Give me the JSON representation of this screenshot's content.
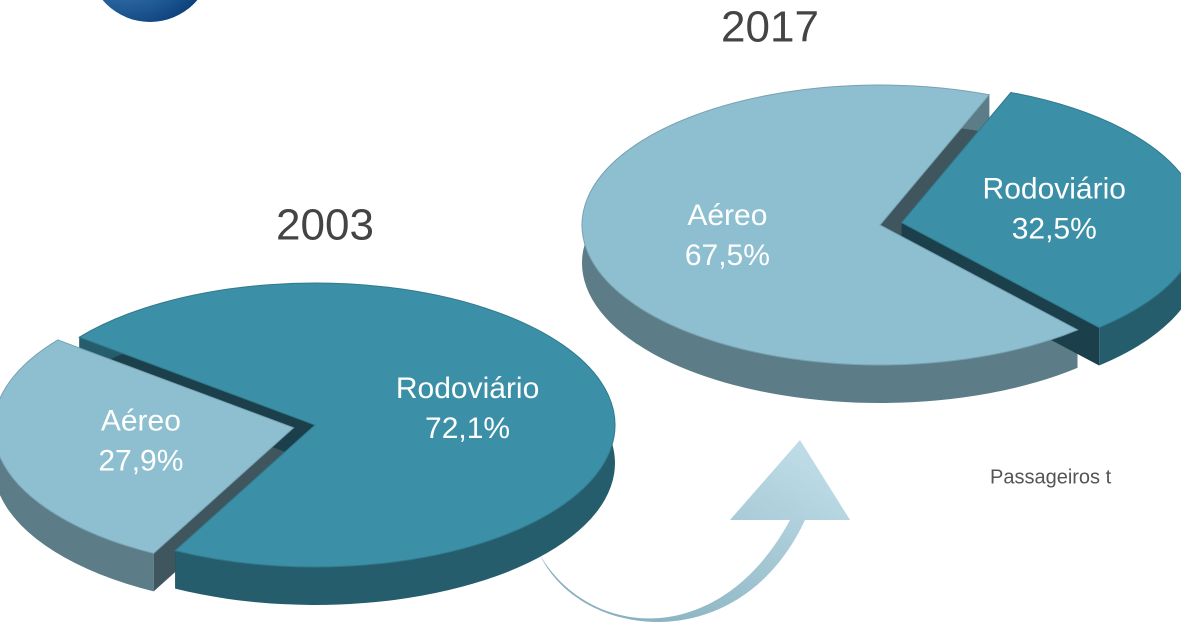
{
  "chart_data": [
    {
      "type": "pie",
      "title": "2003",
      "categories": [
        "Aéreo",
        "Rodoviário"
      ],
      "values": [
        27.9,
        72.1
      ],
      "value_labels": [
        "27,9%",
        "72,1%"
      ],
      "colors": [
        "#8dbfd0",
        "#3b8fa6"
      ]
    },
    {
      "type": "pie",
      "title": "2017",
      "categories": [
        "Aéreo",
        "Rodoviário"
      ],
      "values": [
        67.5,
        32.5
      ],
      "value_labels": [
        "67,5%",
        "32,5%"
      ],
      "colors": [
        "#8dbfd0",
        "#3b8fa6"
      ],
      "caption": "Passageiros t"
    }
  ]
}
